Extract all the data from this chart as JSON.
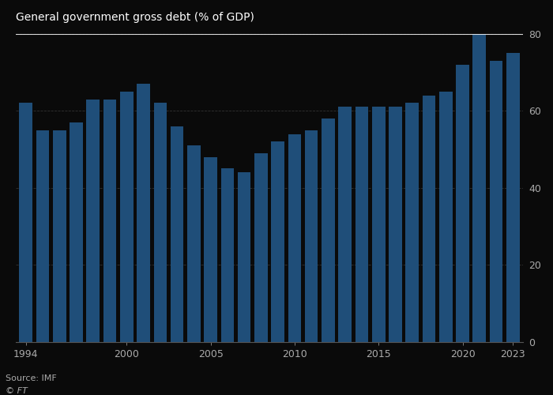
{
  "title": "General government gross debt (% of GDP)",
  "source": "Source: IMF",
  "watermark": "© FT",
  "bar_color": "#1f4e79",
  "background_color": "#0a0a0a",
  "text_color": "#aaaaaa",
  "grid_color": "#2a2a2a",
  "years": [
    1994,
    1995,
    1996,
    1997,
    1998,
    1999,
    2000,
    2001,
    2002,
    2003,
    2004,
    2005,
    2006,
    2007,
    2008,
    2009,
    2010,
    2011,
    2012,
    2013,
    2014,
    2015,
    2016,
    2017,
    2018,
    2019,
    2020,
    2021,
    2022,
    2023
  ],
  "values": [
    62,
    55,
    55,
    57,
    63,
    63,
    65,
    67,
    62,
    56,
    51,
    48,
    45,
    44,
    49,
    52,
    54,
    55,
    58,
    61,
    61,
    61,
    61,
    62,
    64,
    65,
    72,
    82,
    73,
    75
  ],
  "ylim": [
    0,
    80
  ],
  "yticks": [
    0,
    20,
    40,
    60,
    80
  ],
  "xtick_years": [
    1994,
    2000,
    2005,
    2010,
    2015,
    2020,
    2023
  ]
}
